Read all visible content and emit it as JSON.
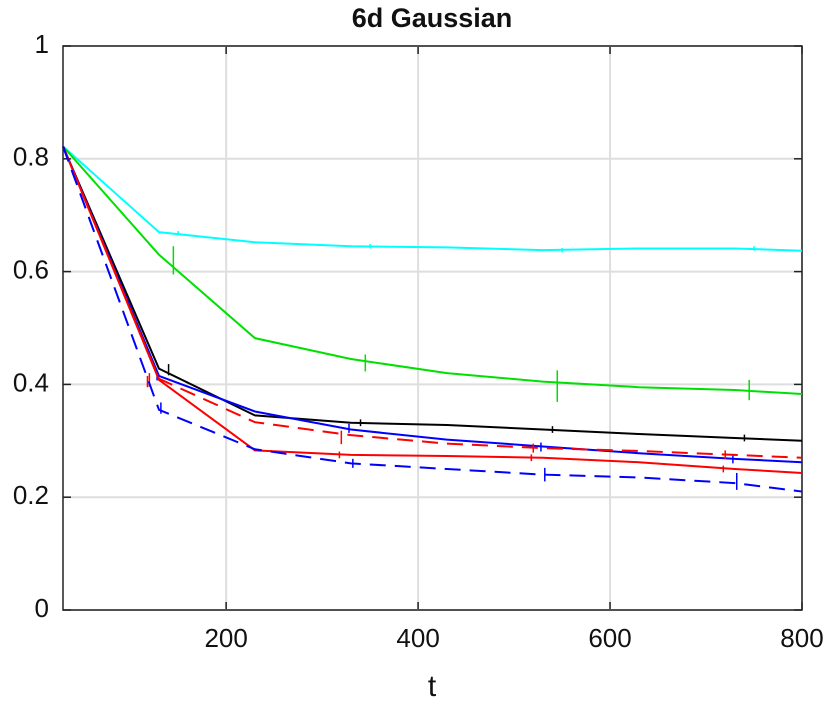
{
  "chart_data": {
    "type": "line",
    "title": "6d Gaussian",
    "xlabel": "t",
    "xlim": [
      30,
      800
    ],
    "ylim": [
      0,
      1
    ],
    "xticks": [
      200,
      400,
      600,
      800
    ],
    "yticks": [
      0,
      0.2,
      0.4,
      0.6,
      0.8,
      1
    ],
    "grid": true,
    "x": [
      30,
      130,
      230,
      330,
      430,
      530,
      630,
      730,
      800
    ],
    "series": [
      {
        "color": "#00ffff",
        "dashed": false,
        "values": [
          0.822,
          0.67,
          0.652,
          0.645,
          0.643,
          0.638,
          0.641,
          0.641,
          0.637
        ],
        "error_x": [
          150,
          350,
          550,
          750
        ],
        "error_y": [
          0.668,
          0.645,
          0.638,
          0.641
        ],
        "error": [
          0.004,
          0.004,
          0.004,
          0.004
        ]
      },
      {
        "color": "#00e000",
        "dashed": false,
        "values": [
          0.822,
          0.63,
          0.482,
          0.445,
          0.42,
          0.405,
          0.395,
          0.39,
          0.383
        ],
        "error_x": [
          145,
          345,
          545,
          745
        ],
        "error_y": [
          0.62,
          0.438,
          0.397,
          0.39
        ],
        "error": [
          0.025,
          0.015,
          0.028,
          0.018
        ]
      },
      {
        "color": "#000000",
        "dashed": false,
        "values": [
          0.822,
          0.428,
          0.345,
          0.332,
          0.328,
          0.32,
          0.312,
          0.305,
          0.3
        ],
        "error_x": [
          140,
          340,
          540,
          740
        ],
        "error_y": [
          0.426,
          0.332,
          0.32,
          0.305
        ],
        "error": [
          0.01,
          0.006,
          0.006,
          0.006
        ]
      },
      {
        "color": "#0000ff",
        "dashed": false,
        "values": [
          0.822,
          0.415,
          0.352,
          0.32,
          0.302,
          0.29,
          0.278,
          0.268,
          0.262
        ],
        "error_x": [
          128,
          328,
          528,
          728
        ],
        "error_y": [
          0.415,
          0.322,
          0.289,
          0.268
        ],
        "error": [
          0.008,
          0.008,
          0.008,
          0.008
        ]
      },
      {
        "color": "#ff0000",
        "dashed": true,
        "values": [
          0.822,
          0.41,
          0.333,
          0.31,
          0.295,
          0.287,
          0.282,
          0.275,
          0.27
        ],
        "error_x": [
          120,
          320,
          520,
          720
        ],
        "error_y": [
          0.408,
          0.306,
          0.287,
          0.275
        ],
        "error": [
          0.012,
          0.012,
          0.008,
          0.008
        ]
      },
      {
        "color": "#ff0000",
        "dashed": false,
        "values": [
          0.822,
          0.408,
          0.283,
          0.275,
          0.273,
          0.27,
          0.262,
          0.25,
          0.243
        ],
        "error_x": [
          118,
          318,
          518,
          718
        ],
        "error_y": [
          0.405,
          0.275,
          0.27,
          0.25
        ],
        "error": [
          0.01,
          0.006,
          0.006,
          0.006
        ]
      },
      {
        "color": "#0000ff",
        "dashed": true,
        "values": [
          0.822,
          0.355,
          0.285,
          0.26,
          0.25,
          0.24,
          0.235,
          0.225,
          0.21
        ],
        "error_x": [
          132,
          332,
          532,
          732
        ],
        "error_y": [
          0.358,
          0.26,
          0.24,
          0.228
        ],
        "error": [
          0.01,
          0.008,
          0.012,
          0.015
        ]
      }
    ]
  }
}
